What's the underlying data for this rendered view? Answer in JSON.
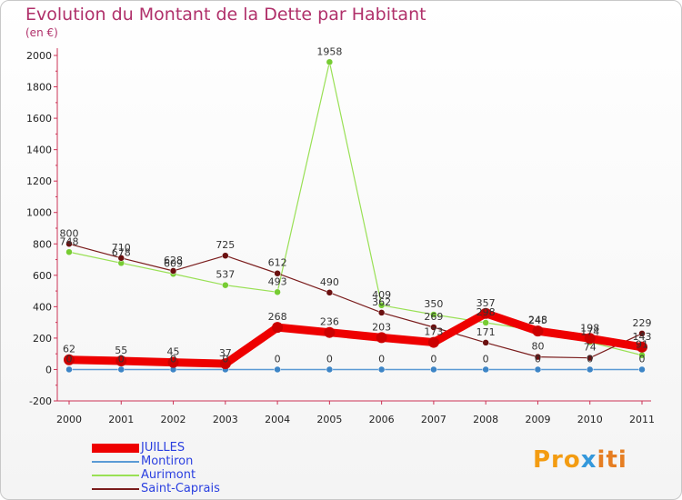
{
  "chart_data": {
    "type": "line",
    "title": "Evolution du Montant de la Dette par Habitant",
    "subtitle": "(en €)",
    "x": [
      "2000",
      "2001",
      "2002",
      "2003",
      "2004",
      "2005",
      "2006",
      "2007",
      "2008",
      "2009",
      "2010",
      "2011"
    ],
    "ylim": [
      -200,
      2000
    ],
    "yticks": [
      -200,
      0,
      200,
      400,
      600,
      800,
      1000,
      1200,
      1400,
      1600,
      1800,
      2000
    ],
    "grid": false,
    "legend_position": "bottom-left",
    "series": [
      {
        "name": "JUILLES",
        "color": "#ee0000",
        "values": [
          62,
          55,
          45,
          37,
          268,
          236,
          203,
          173,
          357,
          245,
          198,
          143
        ]
      },
      {
        "name": "Montiron",
        "color": "#5b9bd5",
        "values": [
          0,
          0,
          0,
          0,
          0,
          0,
          0,
          0,
          0,
          0,
          0,
          0
        ]
      },
      {
        "name": "Aurimont",
        "color": "#88dd44",
        "values": [
          748,
          678,
          609,
          537,
          493,
          1958,
          409,
          350,
          298,
          248,
          174,
          91
        ]
      },
      {
        "name": "Saint-Caprais",
        "color": "#7a1c1c",
        "values": [
          800,
          710,
          628,
          725,
          612,
          490,
          362,
          269,
          171,
          80,
          74,
          229
        ]
      }
    ]
  },
  "logo": {
    "parts": [
      "Pro",
      "x",
      "iti"
    ],
    "colors": [
      "#f39c12",
      "#3498db",
      "#e67e22"
    ]
  }
}
